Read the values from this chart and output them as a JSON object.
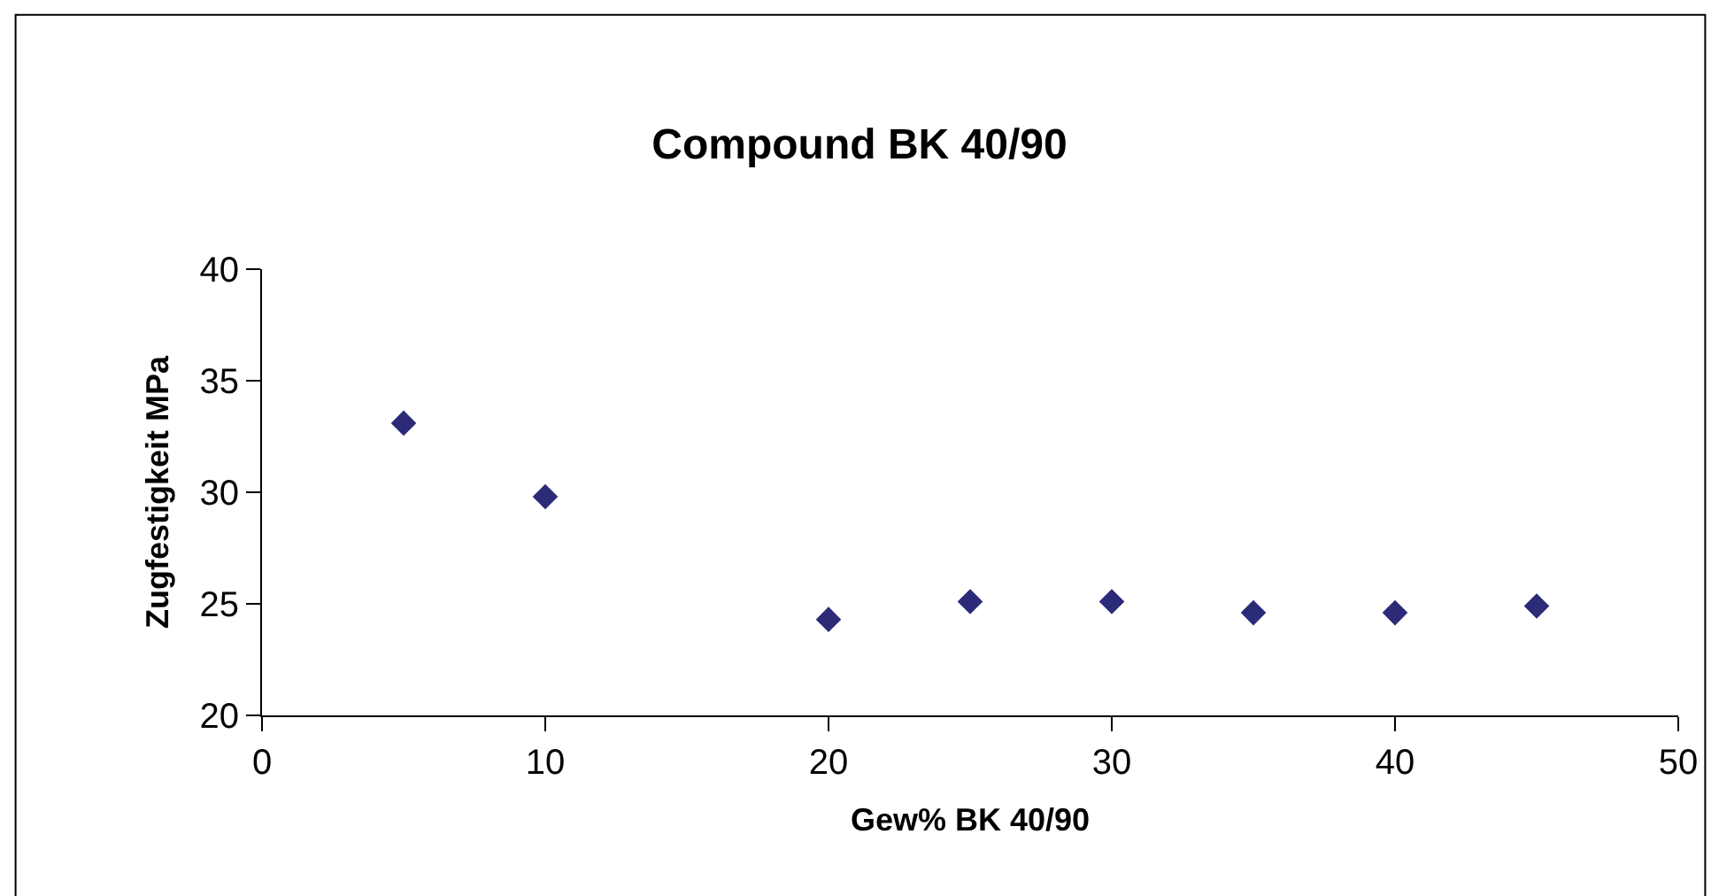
{
  "chart_data": {
    "type": "scatter",
    "title": "Compound BK 40/90",
    "xlabel": "Gew% BK 40/90",
    "ylabel": "Zugfestigkeit MPa",
    "x": [
      5,
      10,
      20,
      25,
      30,
      35,
      40,
      45
    ],
    "series": [
      {
        "color": "#2b2b78",
        "values": [
          33.1,
          29.8,
          24.3,
          25.1,
          25.1,
          24.6,
          24.6,
          24.9
        ]
      }
    ],
    "xlim": [
      0,
      50
    ],
    "xticks": [
      0,
      10,
      20,
      30,
      40,
      50
    ],
    "ylim": [
      20,
      40
    ],
    "yticks": [
      20,
      25,
      30,
      35,
      40
    ],
    "marker": "diamond"
  }
}
